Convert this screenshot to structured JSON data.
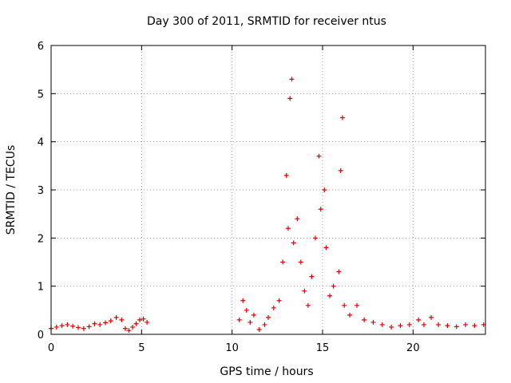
{
  "chart_data": {
    "type": "scatter",
    "title": "Day 300 of 2011, SRMTID for receiver ntus",
    "xlabel": "GPS time / hours",
    "ylabel": "SRMTID / TECUs",
    "xlim": [
      0,
      24
    ],
    "ylim": [
      0,
      6
    ],
    "xticks": [
      0,
      5,
      10,
      15,
      20
    ],
    "yticks": [
      0,
      1,
      2,
      3,
      4,
      5,
      6
    ],
    "xtick_labels": [
      "0",
      "5",
      "10",
      "15",
      "20"
    ],
    "ytick_labels": [
      "0",
      "1",
      "2",
      "3",
      "4",
      "5",
      "6"
    ],
    "grid": true,
    "marker": "+",
    "series": [
      {
        "name": "SRMTID",
        "color": "#e00000",
        "points": [
          [
            0.0,
            0.12
          ],
          [
            0.3,
            0.15
          ],
          [
            0.6,
            0.18
          ],
          [
            0.9,
            0.2
          ],
          [
            1.2,
            0.17
          ],
          [
            1.5,
            0.14
          ],
          [
            1.8,
            0.12
          ],
          [
            2.1,
            0.16
          ],
          [
            2.4,
            0.22
          ],
          [
            2.7,
            0.2
          ],
          [
            3.0,
            0.24
          ],
          [
            3.3,
            0.28
          ],
          [
            3.6,
            0.35
          ],
          [
            3.9,
            0.3
          ],
          [
            4.1,
            0.12
          ],
          [
            4.3,
            0.08
          ],
          [
            4.5,
            0.15
          ],
          [
            4.7,
            0.22
          ],
          [
            4.9,
            0.3
          ],
          [
            5.1,
            0.32
          ],
          [
            5.3,
            0.25
          ],
          [
            10.4,
            0.3
          ],
          [
            10.6,
            0.7
          ],
          [
            10.8,
            0.5
          ],
          [
            11.0,
            0.25
          ],
          [
            11.2,
            0.4
          ],
          [
            11.5,
            0.1
          ],
          [
            11.8,
            0.2
          ],
          [
            12.0,
            0.35
          ],
          [
            12.3,
            0.55
          ],
          [
            12.6,
            0.7
          ],
          [
            12.8,
            1.5
          ],
          [
            13.0,
            3.3
          ],
          [
            13.1,
            2.2
          ],
          [
            13.2,
            4.9
          ],
          [
            13.3,
            5.3
          ],
          [
            13.4,
            1.9
          ],
          [
            13.6,
            2.4
          ],
          [
            13.8,
            1.5
          ],
          [
            14.0,
            0.9
          ],
          [
            14.2,
            0.6
          ],
          [
            14.4,
            1.2
          ],
          [
            14.6,
            2.0
          ],
          [
            14.8,
            3.7
          ],
          [
            14.9,
            2.6
          ],
          [
            15.1,
            3.0
          ],
          [
            15.2,
            1.8
          ],
          [
            15.4,
            0.8
          ],
          [
            15.6,
            1.0
          ],
          [
            15.9,
            1.3
          ],
          [
            16.0,
            3.4
          ],
          [
            16.1,
            4.5
          ],
          [
            16.2,
            0.6
          ],
          [
            16.5,
            0.4
          ],
          [
            16.9,
            0.6
          ],
          [
            17.3,
            0.3
          ],
          [
            17.8,
            0.25
          ],
          [
            18.3,
            0.2
          ],
          [
            18.8,
            0.15
          ],
          [
            19.3,
            0.18
          ],
          [
            19.8,
            0.2
          ],
          [
            20.3,
            0.3
          ],
          [
            20.6,
            0.2
          ],
          [
            21.0,
            0.35
          ],
          [
            21.4,
            0.2
          ],
          [
            21.9,
            0.18
          ],
          [
            22.4,
            0.16
          ],
          [
            22.9,
            0.2
          ],
          [
            23.4,
            0.18
          ],
          [
            23.9,
            0.2
          ]
        ]
      }
    ]
  }
}
